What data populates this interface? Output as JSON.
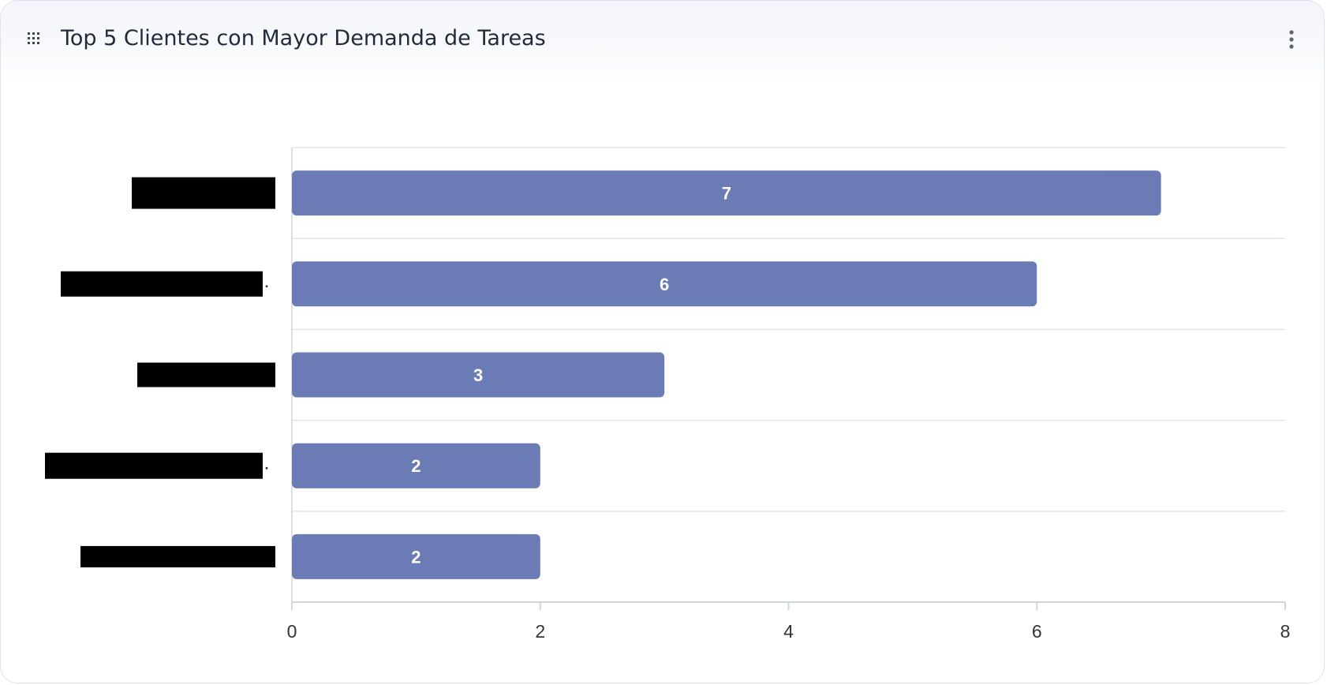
{
  "widget": {
    "title": "Top 5 Clientes con Mayor Demanda de Tareas",
    "drag_icon": "drag-grid-icon",
    "menu_icon": "kebab-vertical-icon"
  },
  "chart_data": {
    "type": "bar",
    "orientation": "horizontal",
    "categories": [
      "",
      "",
      "",
      "",
      ""
    ],
    "values": [
      7,
      6,
      3,
      2,
      2
    ],
    "value_labels": [
      "7",
      "6",
      "3",
      "2",
      "2"
    ],
    "category_labels_redacted": true,
    "xlim": [
      0,
      8
    ],
    "x_ticks": [
      "0",
      "2",
      "4",
      "6",
      "8"
    ],
    "title": "",
    "xlabel": "",
    "ylabel": "",
    "grid": "horizontal separators",
    "legend": "none",
    "colors": {
      "bar": "#6a7bb5",
      "value_label": "#ffffff",
      "grid": "#e3e5ea",
      "axis": "#d3d6dc",
      "tick_label": "#333333",
      "redaction": "#000000"
    }
  }
}
